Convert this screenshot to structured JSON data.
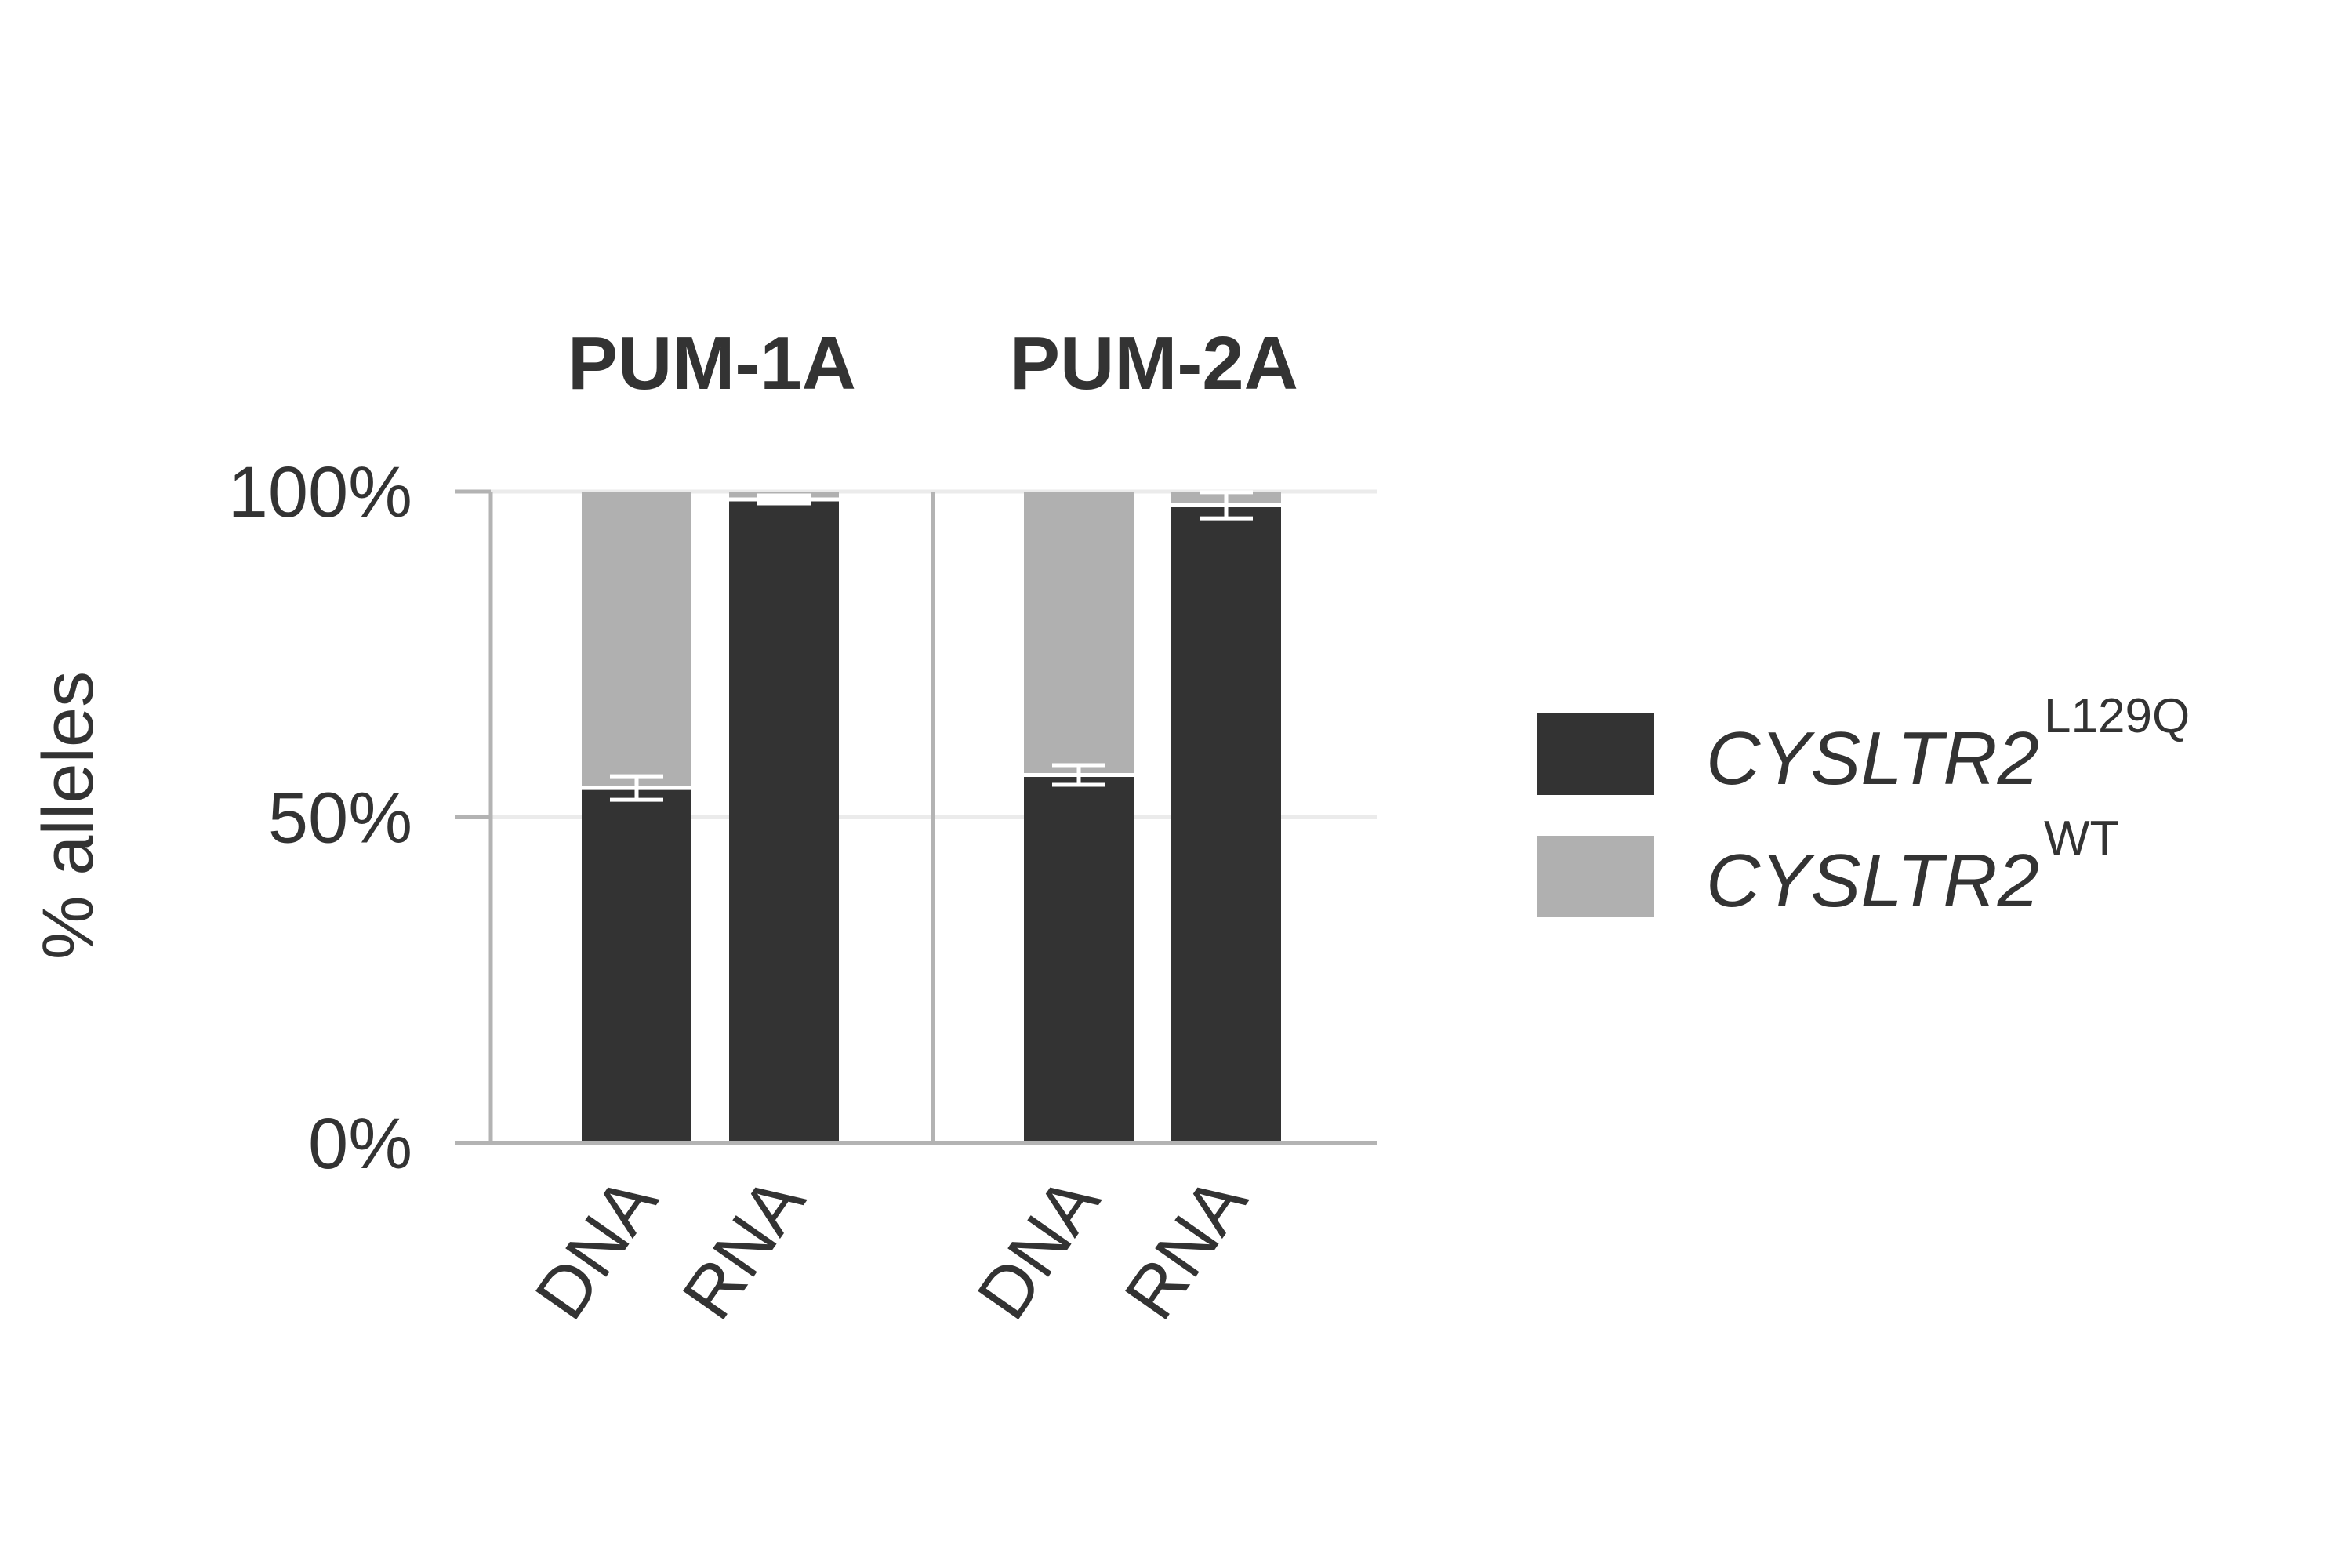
{
  "chart_data": {
    "type": "bar",
    "stacked": true,
    "panels": [
      {
        "title": "PUM-1A",
        "categories": [
          "DNA",
          "RNA"
        ],
        "series": [
          {
            "name": "CYSLTR2 L129Q",
            "values": [
              54.5,
              98.8
            ],
            "error": [
              1.8,
              0.6
            ]
          },
          {
            "name": "CYSLTR2 WT",
            "values": [
              45.5,
              1.2
            ]
          }
        ]
      },
      {
        "title": "PUM-2A",
        "categories": [
          "DNA",
          "RNA"
        ],
        "series": [
          {
            "name": "CYSLTR2 L129Q",
            "values": [
              56.5,
              97.9
            ],
            "error": [
              1.5,
              2.0
            ]
          },
          {
            "name": "CYSLTR2 WT",
            "values": [
              43.5,
              2.1
            ]
          }
        ]
      }
    ],
    "ylabel": "% alleles",
    "yticks": [
      "0%",
      "50%",
      "100%"
    ],
    "ylim": [
      0,
      100
    ],
    "grid": true,
    "legend": {
      "placement": "right",
      "entries": [
        {
          "main": "CYSLTR2",
          "sup": "L129Q",
          "color": "#333333"
        },
        {
          "main": "CYSLTR2",
          "sup": "WT",
          "color": "#b0b0b0"
        }
      ]
    },
    "colors": {
      "mutant": "#333333",
      "wildtype": "#b0b0b0",
      "axis": "#b3b3b3",
      "grid": "#ebebeb",
      "error": "#ffffff"
    }
  }
}
